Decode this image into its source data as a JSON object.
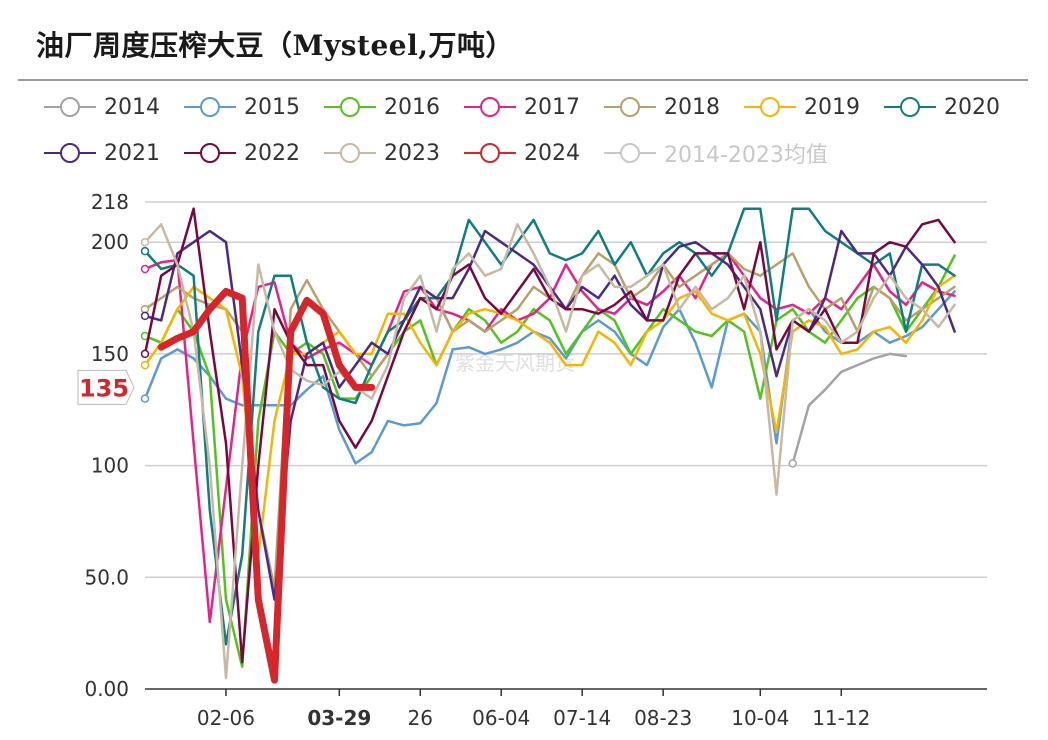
{
  "title": "油厂周度压榨大豆（Mysteel,万吨）",
  "watermark": "紫金天风期货",
  "chart_data": {
    "type": "line",
    "ylim": [
      0,
      218
    ],
    "yticks": [
      0,
      50,
      100,
      150,
      200,
      218
    ],
    "ytick_labels": [
      "0.00",
      "50.0",
      "100",
      "150",
      "200",
      "218"
    ],
    "xtick_labels": [
      "02-06",
      "03-29",
      "26",
      "06-04",
      "07-14",
      "08-23",
      "10-04",
      "11-12"
    ],
    "xtick_weeks": [
      5,
      12,
      17,
      22,
      27,
      32,
      38,
      43
    ],
    "highlight_tick": "03-29",
    "pointer_value": "135",
    "pointer_color": "#d7262b",
    "grid": true,
    "legend_position": "top",
    "series": [
      {
        "name": "2014",
        "color": "#a3a3a3",
        "start": 40,
        "values": [
          101,
          127,
          134,
          142,
          145,
          148,
          150,
          149
        ]
      },
      {
        "name": "2015",
        "color": "#5b9bd5",
        "start": 0,
        "values": [
          130,
          148,
          152,
          148,
          140,
          130,
          127,
          127,
          127,
          127,
          134,
          140,
          116,
          101,
          106,
          120,
          118,
          119,
          128,
          152,
          153,
          150,
          152,
          155,
          160,
          157,
          148,
          160,
          165,
          160,
          150,
          145,
          162,
          170,
          155,
          135,
          165,
          168,
          160,
          110,
          165,
          170,
          160,
          155,
          155,
          160,
          155,
          158,
          162,
          170,
          178
        ]
      },
      {
        "name": "2016",
        "color": "#52c41a",
        "start": 0,
        "values": [
          158,
          155,
          170,
          160,
          140,
          40,
          10,
          120,
          160,
          150,
          155,
          150,
          130,
          130,
          140,
          150,
          160,
          165,
          145,
          160,
          170,
          165,
          155,
          160,
          170,
          165,
          150,
          160,
          170,
          165,
          150,
          160,
          170,
          165,
          160,
          158,
          165,
          160,
          130,
          165,
          170,
          160,
          155,
          165,
          175,
          180,
          175,
          160,
          170,
          180,
          194
        ]
      },
      {
        "name": "2017",
        "color": "#e8208c",
        "start": 0,
        "values": [
          188,
          191,
          192,
          110,
          30,
          90,
          150,
          180,
          182,
          155,
          148,
          152,
          155,
          150,
          145,
          160,
          178,
          180,
          170,
          168,
          165,
          160,
          170,
          165,
          168,
          175,
          190,
          178,
          170,
          168,
          175,
          172,
          178,
          185,
          175,
          190,
          195,
          185,
          175,
          170,
          172,
          168,
          175,
          170,
          180,
          190,
          178,
          172,
          182,
          178,
          176
        ]
      },
      {
        "name": "2018",
        "color": "#b8a06a",
        "start": 0,
        "values": [
          170,
          175,
          180,
          175,
          172,
          170,
          160,
          80,
          45,
          170,
          183,
          170,
          160,
          150,
          140,
          150,
          165,
          180,
          175,
          160,
          165,
          160,
          165,
          170,
          180,
          175,
          170,
          185,
          195,
          190,
          175,
          180,
          190,
          180,
          185,
          190,
          195,
          188,
          185,
          190,
          195,
          180,
          170,
          175,
          160,
          180,
          175,
          165,
          170,
          175,
          180
        ]
      },
      {
        "name": "2019",
        "color": "#f7b500",
        "start": 0,
        "values": [
          145,
          155,
          170,
          180,
          175,
          170,
          140,
          60,
          120,
          150,
          150,
          155,
          160,
          150,
          150,
          168,
          168,
          155,
          145,
          160,
          168,
          170,
          168,
          165,
          160,
          155,
          145,
          145,
          160,
          155,
          145,
          160,
          165,
          175,
          178,
          168,
          165,
          168,
          150,
          115,
          160,
          165,
          162,
          150,
          152,
          160,
          162,
          155,
          165,
          180,
          185
        ]
      },
      {
        "name": "2020",
        "color": "#0f7e7e",
        "start": 0,
        "values": [
          196,
          188,
          190,
          185,
          80,
          20,
          60,
          160,
          185,
          185,
          155,
          135,
          130,
          128,
          145,
          160,
          165,
          175,
          175,
          185,
          210,
          200,
          190,
          200,
          210,
          195,
          192,
          195,
          205,
          190,
          200,
          185,
          195,
          200,
          195,
          185,
          195,
          215,
          215,
          165,
          215,
          215,
          205,
          200,
          195,
          190,
          195,
          160,
          190,
          190,
          185
        ]
      },
      {
        "name": "2021",
        "color": "#4b2a85",
        "start": 0,
        "values": [
          167,
          165,
          195,
          200,
          205,
          200,
          145,
          80,
          40,
          120,
          150,
          155,
          135,
          145,
          155,
          150,
          165,
          180,
          175,
          175,
          188,
          205,
          200,
          195,
          190,
          180,
          170,
          180,
          175,
          185,
          172,
          165,
          190,
          198,
          200,
          195,
          190,
          180,
          170,
          140,
          165,
          160,
          175,
          205,
          195,
          195,
          185,
          198,
          190,
          180,
          160
        ]
      },
      {
        "name": "2022",
        "color": "#7a0840",
        "start": 0,
        "values": [
          150,
          185,
          190,
          215,
          160,
          110,
          12,
          100,
          170,
          155,
          145,
          145,
          120,
          108,
          120,
          140,
          160,
          175,
          170,
          185,
          190,
          175,
          168,
          178,
          188,
          175,
          170,
          170,
          168,
          172,
          178,
          165,
          165,
          185,
          195,
          195,
          195,
          170,
          200,
          152,
          165,
          160,
          170,
          155,
          155,
          195,
          200,
          198,
          208,
          210,
          200
        ]
      },
      {
        "name": "2023",
        "color": "#c9b8a2",
        "start": 0,
        "values": [
          200,
          208,
          190,
          160,
          100,
          5,
          100,
          190,
          160,
          143,
          138,
          136,
          142,
          135,
          130,
          145,
          175,
          185,
          160,
          188,
          195,
          185,
          188,
          208,
          195,
          180,
          160,
          185,
          190,
          180,
          180,
          185,
          190,
          170,
          180,
          170,
          175,
          185,
          160,
          87,
          165,
          170,
          165,
          155,
          160,
          175,
          185,
          175,
          170,
          162,
          172
        ]
      },
      {
        "name": "2024",
        "color": "#d7262b",
        "start": 1,
        "values": [
          153,
          157,
          160,
          170,
          178,
          175,
          40,
          4,
          160,
          174,
          168,
          145,
          135,
          135
        ]
      }
    ],
    "mean_series_name": "2014-2023均值",
    "mean_series_color": "#c8c8c8"
  }
}
